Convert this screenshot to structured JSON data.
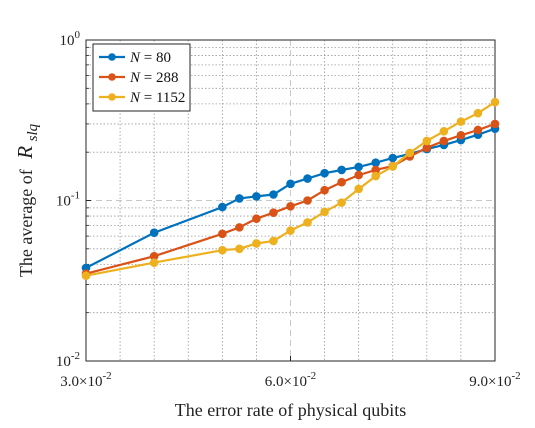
{
  "chart_data": {
    "type": "line",
    "title": "",
    "xlabel": "The error rate of physical qubits",
    "ylabel_prefix": "The average of",
    "ylabel_symbol": "R",
    "ylabel_subscript": "slq",
    "xscale": "linear",
    "yscale": "log",
    "xlim": [
      0.03,
      0.09
    ],
    "ylim": [
      0.01,
      1
    ],
    "grid": true,
    "legend_position": "top-left",
    "legend_var": "N",
    "x_ticks": [
      {
        "value": 0.03,
        "mantissa": "3.0",
        "exp": "-2"
      },
      {
        "value": 0.06,
        "mantissa": "6.0",
        "exp": "-2"
      },
      {
        "value": 0.09,
        "mantissa": "9.0",
        "exp": "-2"
      }
    ],
    "y_ticks": [
      {
        "value": 0.01,
        "base": "10",
        "exp": "-2"
      },
      {
        "value": 0.1,
        "base": "10",
        "exp": "-1"
      },
      {
        "value": 1,
        "base": "10",
        "exp": "0"
      }
    ],
    "series": [
      {
        "name": "80",
        "color": "#0072BD",
        "x": [
          0.03,
          0.04,
          0.05,
          0.0525,
          0.055,
          0.0575,
          0.06,
          0.0625,
          0.065,
          0.0675,
          0.07,
          0.0725,
          0.075,
          0.0775,
          0.08,
          0.0825,
          0.085,
          0.0875,
          0.09
        ],
        "y": [
          0.038,
          0.063,
          0.091,
          0.103,
          0.106,
          0.109,
          0.127,
          0.137,
          0.148,
          0.155,
          0.162,
          0.172,
          0.184,
          0.195,
          0.209,
          0.222,
          0.238,
          0.257,
          0.28
        ]
      },
      {
        "name": "288",
        "color": "#D95319",
        "x": [
          0.03,
          0.04,
          0.05,
          0.0525,
          0.055,
          0.0575,
          0.06,
          0.0625,
          0.065,
          0.0675,
          0.07,
          0.0725,
          0.075,
          0.0775,
          0.08,
          0.0825,
          0.085,
          0.0875,
          0.09
        ],
        "y": [
          0.035,
          0.045,
          0.062,
          0.068,
          0.077,
          0.084,
          0.092,
          0.1,
          0.116,
          0.13,
          0.144,
          0.155,
          0.164,
          0.188,
          0.213,
          0.235,
          0.255,
          0.275,
          0.3
        ]
      },
      {
        "name": "1152",
        "color": "#EDB120",
        "x": [
          0.03,
          0.04,
          0.05,
          0.0525,
          0.055,
          0.0575,
          0.06,
          0.0625,
          0.065,
          0.0675,
          0.07,
          0.0725,
          0.075,
          0.0775,
          0.08,
          0.0825,
          0.085,
          0.0875,
          0.09
        ],
        "y": [
          0.034,
          0.041,
          0.049,
          0.05,
          0.054,
          0.056,
          0.065,
          0.073,
          0.085,
          0.097,
          0.118,
          0.142,
          0.163,
          0.198,
          0.235,
          0.27,
          0.31,
          0.35,
          0.41
        ]
      }
    ]
  }
}
